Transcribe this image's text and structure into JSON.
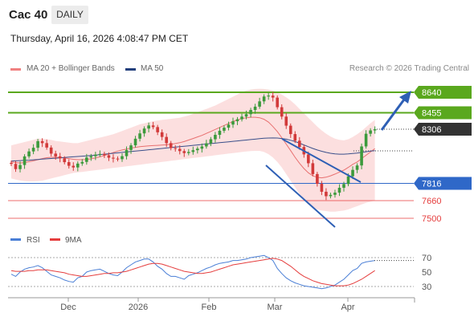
{
  "header": {
    "title": "Cac 40",
    "period_tab": "DAILY"
  },
  "datetime": "Thursday, April 16, 2026 4:08:47 PM CET",
  "legend": {
    "bollinger": "MA 20 + Bollinger Bands",
    "ma50": "MA 50",
    "rsi": "RSI",
    "rsi_ma": "9MA"
  },
  "credit": "Research © 2026 Trading Central",
  "colors": {
    "green": "#5aa81e",
    "blue": "#2f68c8",
    "red": "#e53d3d",
    "dark": "#333333",
    "navy": "#223f7c",
    "band": "#fbd9d9"
  },
  "chart_data": [
    {
      "type": "candlestick",
      "title": "",
      "x_ticks": [
        "Dec",
        "2026",
        "Feb",
        "Mar",
        "Apr"
      ],
      "ylim": [
        6900,
        8750
      ],
      "levels": [
        {
          "value": 8640,
          "label": "8640",
          "kind": "resistance",
          "color": "#5aa81e"
        },
        {
          "value": 8455,
          "label": "8455",
          "kind": "resistance",
          "color": "#5aa81e"
        },
        {
          "value": 8306,
          "label": "8306",
          "kind": "last-price",
          "color": "#333333"
        },
        {
          "value": 7816,
          "label": "7816",
          "kind": "pivot",
          "color": "#2f68c8"
        },
        {
          "value": 7660,
          "label": "7660",
          "kind": "support",
          "color": "#e53d3d"
        },
        {
          "value": 7500,
          "label": "7500",
          "kind": "support",
          "color": "#e53d3d"
        }
      ],
      "closes": [
        7992,
        7945,
        7982,
        8060,
        8105,
        8138,
        8198,
        8180,
        8140,
        8085,
        8060,
        8042,
        8008,
        7975,
        7960,
        7995,
        8010,
        8050,
        8062,
        8076,
        8082,
        8070,
        8048,
        8040,
        8035,
        8062,
        8118,
        8160,
        8220,
        8268,
        8312,
        8340,
        8325,
        8278,
        8236,
        8180,
        8135,
        8128,
        8108,
        8090,
        8100,
        8116,
        8130,
        8150,
        8178,
        8215,
        8255,
        8292,
        8320,
        8348,
        8378,
        8396,
        8420,
        8442,
        8480,
        8510,
        8558,
        8602,
        8610,
        8592,
        8505,
        8420,
        8338,
        8262,
        8202,
        8145,
        8078,
        7998,
        7900,
        7812,
        7740,
        7700,
        7712,
        7732,
        7776,
        7810,
        7880,
        7938,
        7978,
        8150,
        8265,
        8295,
        8306
      ],
      "ma20": [
        8010,
        8005,
        8000,
        8005,
        8012,
        8020,
        8030,
        8040,
        8048,
        8052,
        8052,
        8050,
        8046,
        8040,
        8034,
        8030,
        8030,
        8032,
        8038,
        8046,
        8056,
        8068,
        8082,
        8095,
        8108,
        8118,
        8126,
        8135,
        8142,
        8148,
        8152,
        8155,
        8158,
        8160,
        8162,
        8165,
        8170,
        8176,
        8184,
        8194,
        8208,
        8222,
        8236,
        8250,
        8268,
        8286,
        8304,
        8322,
        8340,
        8358,
        8375,
        8390,
        8402,
        8410,
        8414,
        8414,
        8410,
        8396,
        8370,
        8330,
        8285,
        8230,
        8172,
        8112,
        8052,
        7998,
        7950,
        7912,
        7884,
        7870,
        7866,
        7872,
        7884,
        7900,
        7918,
        7936,
        7960,
        7988,
        8010,
        8040,
        8070,
        8100,
        8130
      ],
      "ma50": [
        8018,
        8020,
        8022,
        8024,
        8026,
        8029,
        8032,
        8035,
        8038,
        8041,
        8044,
        8047,
        8050,
        8053,
        8056,
        8059,
        8062,
        8065,
        8068,
        8072,
        8076,
        8080,
        8084,
        8088,
        8092,
        8096,
        8100,
        8104,
        8108,
        8112,
        8116,
        8120,
        8124,
        8128,
        8132,
        8136,
        8140,
        8144,
        8148,
        8152,
        8156,
        8160,
        8164,
        8168,
        8172,
        8176,
        8180,
        8184,
        8188,
        8192,
        8196,
        8200,
        8204,
        8208,
        8212,
        8216,
        8220,
        8224,
        8226,
        8227,
        8226,
        8222,
        8216,
        8206,
        8194,
        8180,
        8164,
        8148,
        8132,
        8118,
        8106,
        8096,
        8088,
        8082,
        8080,
        8080,
        8082,
        8086,
        8090,
        8096,
        8102,
        8108,
        8112
      ],
      "bollinger_upper": [
        8160,
        8170,
        8180,
        8190,
        8200,
        8210,
        8220,
        8220,
        8215,
        8210,
        8200,
        8195,
        8190,
        8185,
        8180,
        8180,
        8190,
        8200,
        8210,
        8220,
        8230,
        8240,
        8250,
        8260,
        8275,
        8290,
        8305,
        8320,
        8335,
        8350,
        8360,
        8370,
        8378,
        8385,
        8390,
        8395,
        8400,
        8405,
        8410,
        8420,
        8430,
        8445,
        8460,
        8475,
        8490,
        8505,
        8520,
        8540,
        8560,
        8580,
        8600,
        8620,
        8640,
        8655,
        8665,
        8670,
        8672,
        8670,
        8665,
        8655,
        8640,
        8620,
        8595,
        8565,
        8530,
        8490,
        8450,
        8410,
        8370,
        8330,
        8295,
        8265,
        8240,
        8220,
        8210,
        8205,
        8215,
        8235,
        8260,
        8290,
        8325,
        8360,
        8390
      ],
      "bollinger_lower": [
        7860,
        7850,
        7842,
        7836,
        7834,
        7834,
        7836,
        7840,
        7850,
        7860,
        7870,
        7880,
        7890,
        7900,
        7910,
        7915,
        7920,
        7925,
        7930,
        7935,
        7940,
        7945,
        7950,
        7955,
        7960,
        7965,
        7970,
        7975,
        7980,
        7985,
        7990,
        7995,
        8000,
        8005,
        8010,
        8015,
        8020,
        8025,
        8030,
        8035,
        8040,
        8045,
        8050,
        8055,
        8060,
        8065,
        8070,
        8075,
        8080,
        8085,
        8090,
        8095,
        8100,
        8105,
        8108,
        8110,
        8110,
        8100,
        8080,
        8050,
        8010,
        7960,
        7900,
        7840,
        7780,
        7720,
        7670,
        7630,
        7600,
        7580,
        7570,
        7565,
        7560,
        7560,
        7565,
        7570,
        7580,
        7595,
        7610,
        7625,
        7640,
        7650,
        7660
      ],
      "trend_lines": [
        "descending channel (Mar–Apr)",
        "projected bullish arrow toward 8640"
      ]
    },
    {
      "type": "line",
      "title": "",
      "ylim": [
        20,
        80
      ],
      "y_ticks": [
        "70",
        "50",
        "30"
      ],
      "series": [
        {
          "name": "RSI",
          "values": [
            47,
            44,
            50,
            54,
            56,
            57,
            59,
            56,
            51,
            46,
            44,
            42,
            39,
            37,
            36,
            42,
            44,
            50,
            52,
            53,
            54,
            51,
            48,
            46,
            45,
            50,
            56,
            60,
            64,
            66,
            68,
            68,
            64,
            58,
            54,
            48,
            44,
            44,
            42,
            40,
            45,
            47,
            49,
            52,
            55,
            57,
            60,
            62,
            63,
            64,
            66,
            66,
            67,
            68,
            70,
            71,
            72,
            73,
            70,
            66,
            55,
            48,
            42,
            38,
            35,
            33,
            31,
            30,
            29,
            28,
            27,
            28,
            30,
            32,
            36,
            40,
            46,
            52,
            55,
            62,
            64,
            65,
            66
          ],
          "color": "#4a7fd6"
        },
        {
          "name": "9MA",
          "values": [
            52,
            51,
            51,
            51,
            52,
            52,
            53,
            53,
            53,
            52,
            51,
            50,
            49,
            47,
            46,
            45,
            44,
            44,
            45,
            46,
            47,
            48,
            48,
            49,
            49,
            50,
            51,
            53,
            55,
            57,
            59,
            61,
            62,
            62,
            61,
            59,
            57,
            55,
            53,
            51,
            50,
            49,
            48,
            48,
            49,
            50,
            52,
            54,
            56,
            58,
            60,
            61,
            62,
            63,
            64,
            65,
            66,
            67,
            68,
            69,
            68,
            66,
            62,
            58,
            53,
            48,
            44,
            41,
            38,
            36,
            34,
            33,
            32,
            31,
            31,
            31,
            32,
            34,
            37,
            40,
            44,
            48,
            52
          ],
          "color": "#e53d3d"
        }
      ]
    }
  ]
}
